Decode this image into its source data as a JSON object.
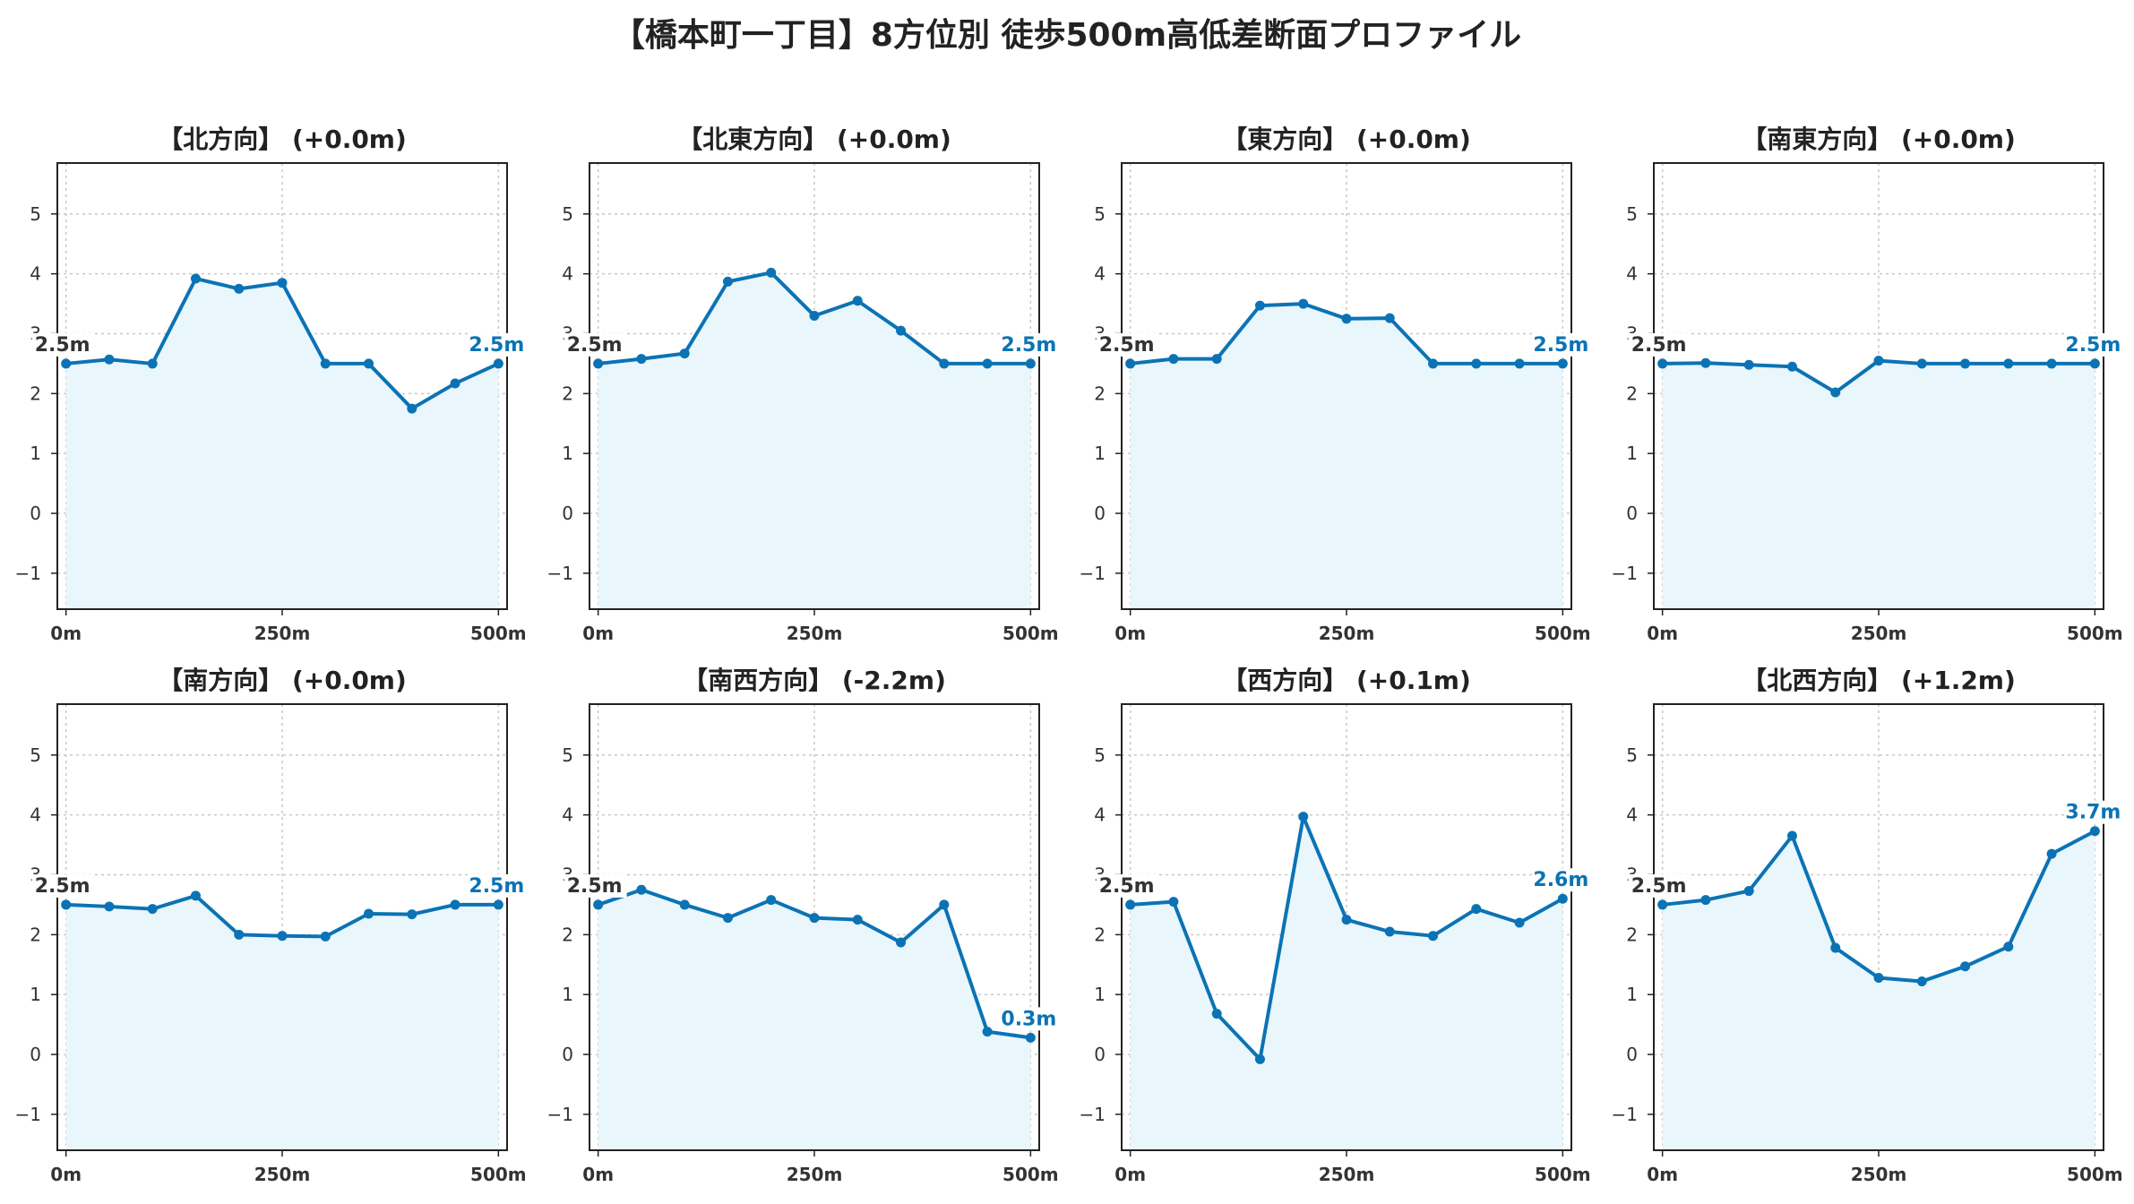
{
  "title": "【橋本町一丁目】8方位別 徒歩500m高低差断面プロファイル",
  "colors": {
    "line": "#0b73b5",
    "fill": "#e9f6fb",
    "grid": "#c8c8c8",
    "start_label": "#333333"
  },
  "chart_data": [
    {
      "type": "area",
      "title": "【北方向】 (+0.0m)",
      "xlabel": "",
      "ylabel": "",
      "x": [
        0,
        50,
        100,
        150,
        200,
        250,
        300,
        350,
        400,
        450,
        500
      ],
      "y": [
        2.5,
        2.57,
        2.5,
        3.92,
        3.75,
        3.85,
        2.5,
        2.5,
        1.75,
        2.17,
        2.5
      ],
      "xlim": [
        -10,
        510
      ],
      "ylim": [
        -1.6,
        5.85
      ],
      "x_ticks": [
        0,
        250,
        500
      ],
      "x_tick_labels": [
        "0m",
        "250m",
        "500m"
      ],
      "y_ticks": [
        -1,
        0,
        1,
        2,
        3,
        4,
        5
      ],
      "y_tick_labels": [
        "−1",
        "0",
        "1",
        "2",
        "3",
        "4",
        "5"
      ],
      "start_label": "2.5m",
      "end_label": "2.5m",
      "grid": true
    },
    {
      "type": "area",
      "title": "【北東方向】 (+0.0m)",
      "xlabel": "",
      "ylabel": "",
      "x": [
        0,
        50,
        100,
        150,
        200,
        250,
        300,
        350,
        400,
        450,
        500
      ],
      "y": [
        2.5,
        2.58,
        2.67,
        3.87,
        4.02,
        3.3,
        3.55,
        3.05,
        2.5,
        2.5,
        2.5
      ],
      "xlim": [
        -10,
        510
      ],
      "ylim": [
        -1.6,
        5.85
      ],
      "x_ticks": [
        0,
        250,
        500
      ],
      "x_tick_labels": [
        "0m",
        "250m",
        "500m"
      ],
      "y_ticks": [
        -1,
        0,
        1,
        2,
        3,
        4,
        5
      ],
      "y_tick_labels": [
        "−1",
        "0",
        "1",
        "2",
        "3",
        "4",
        "5"
      ],
      "start_label": "2.5m",
      "end_label": "2.5m",
      "grid": true
    },
    {
      "type": "area",
      "title": "【東方向】 (+0.0m)",
      "xlabel": "",
      "ylabel": "",
      "x": [
        0,
        50,
        100,
        150,
        200,
        250,
        300,
        350,
        400,
        450,
        500
      ],
      "y": [
        2.5,
        2.58,
        2.58,
        3.47,
        3.5,
        3.25,
        3.26,
        2.5,
        2.5,
        2.5,
        2.5
      ],
      "xlim": [
        -10,
        510
      ],
      "ylim": [
        -1.6,
        5.85
      ],
      "x_ticks": [
        0,
        250,
        500
      ],
      "x_tick_labels": [
        "0m",
        "250m",
        "500m"
      ],
      "y_ticks": [
        -1,
        0,
        1,
        2,
        3,
        4,
        5
      ],
      "y_tick_labels": [
        "−1",
        "0",
        "1",
        "2",
        "3",
        "4",
        "5"
      ],
      "start_label": "2.5m",
      "end_label": "2.5m",
      "grid": true
    },
    {
      "type": "area",
      "title": "【南東方向】 (+0.0m)",
      "xlabel": "",
      "ylabel": "",
      "x": [
        0,
        50,
        100,
        150,
        200,
        250,
        300,
        350,
        400,
        450,
        500
      ],
      "y": [
        2.5,
        2.51,
        2.48,
        2.45,
        2.02,
        2.55,
        2.5,
        2.5,
        2.5,
        2.5,
        2.5
      ],
      "xlim": [
        -10,
        510
      ],
      "ylim": [
        -1.6,
        5.85
      ],
      "x_ticks": [
        0,
        250,
        500
      ],
      "x_tick_labels": [
        "0m",
        "250m",
        "500m"
      ],
      "y_ticks": [
        -1,
        0,
        1,
        2,
        3,
        4,
        5
      ],
      "y_tick_labels": [
        "−1",
        "0",
        "1",
        "2",
        "3",
        "4",
        "5"
      ],
      "start_label": "2.5m",
      "end_label": "2.5m",
      "grid": true
    },
    {
      "type": "area",
      "title": "【南方向】 (+0.0m)",
      "xlabel": "",
      "ylabel": "",
      "x": [
        0,
        50,
        100,
        150,
        200,
        250,
        300,
        350,
        400,
        450,
        500
      ],
      "y": [
        2.5,
        2.47,
        2.43,
        2.65,
        2.0,
        1.98,
        1.97,
        2.35,
        2.34,
        2.5,
        2.5
      ],
      "xlim": [
        -10,
        510
      ],
      "ylim": [
        -1.6,
        5.85
      ],
      "x_ticks": [
        0,
        250,
        500
      ],
      "x_tick_labels": [
        "0m",
        "250m",
        "500m"
      ],
      "y_ticks": [
        -1,
        0,
        1,
        2,
        3,
        4,
        5
      ],
      "y_tick_labels": [
        "−1",
        "0",
        "1",
        "2",
        "3",
        "4",
        "5"
      ],
      "start_label": "2.5m",
      "end_label": "2.5m",
      "grid": true
    },
    {
      "type": "area",
      "title": "【南西方向】 (-2.2m)",
      "xlabel": "",
      "ylabel": "",
      "x": [
        0,
        50,
        100,
        150,
        200,
        250,
        300,
        350,
        400,
        450,
        500
      ],
      "y": [
        2.5,
        2.75,
        2.5,
        2.28,
        2.58,
        2.28,
        2.25,
        1.87,
        2.5,
        0.38,
        0.28
      ],
      "xlim": [
        -10,
        510
      ],
      "ylim": [
        -1.6,
        5.85
      ],
      "x_ticks": [
        0,
        250,
        500
      ],
      "x_tick_labels": [
        "0m",
        "250m",
        "500m"
      ],
      "y_ticks": [
        -1,
        0,
        1,
        2,
        3,
        4,
        5
      ],
      "y_tick_labels": [
        "−1",
        "0",
        "1",
        "2",
        "3",
        "4",
        "5"
      ],
      "start_label": "2.5m",
      "end_label": "0.3m",
      "grid": true
    },
    {
      "type": "area",
      "title": "【西方向】 (+0.1m)",
      "xlabel": "",
      "ylabel": "",
      "x": [
        0,
        50,
        100,
        150,
        200,
        250,
        300,
        350,
        400,
        450,
        500
      ],
      "y": [
        2.5,
        2.55,
        0.68,
        -0.08,
        3.97,
        2.25,
        2.05,
        1.98,
        2.43,
        2.2,
        2.6
      ],
      "xlim": [
        -10,
        510
      ],
      "ylim": [
        -1.6,
        5.85
      ],
      "x_ticks": [
        0,
        250,
        500
      ],
      "x_tick_labels": [
        "0m",
        "250m",
        "500m"
      ],
      "y_ticks": [
        -1,
        0,
        1,
        2,
        3,
        4,
        5
      ],
      "y_tick_labels": [
        "−1",
        "0",
        "1",
        "2",
        "3",
        "4",
        "5"
      ],
      "start_label": "2.5m",
      "end_label": "2.6m",
      "grid": true
    },
    {
      "type": "area",
      "title": "【北西方向】 (+1.2m)",
      "xlabel": "",
      "ylabel": "",
      "x": [
        0,
        50,
        100,
        150,
        200,
        250,
        300,
        350,
        400,
        450,
        500
      ],
      "y": [
        2.5,
        2.58,
        2.73,
        3.65,
        1.78,
        1.28,
        1.22,
        1.47,
        1.8,
        3.35,
        3.73
      ],
      "xlim": [
        -10,
        510
      ],
      "ylim": [
        -1.6,
        5.85
      ],
      "x_ticks": [
        0,
        250,
        500
      ],
      "x_tick_labels": [
        "0m",
        "250m",
        "500m"
      ],
      "y_ticks": [
        -1,
        0,
        1,
        2,
        3,
        4,
        5
      ],
      "y_tick_labels": [
        "−1",
        "0",
        "1",
        "2",
        "3",
        "4",
        "5"
      ],
      "start_label": "2.5m",
      "end_label": "3.7m",
      "grid": true
    }
  ]
}
